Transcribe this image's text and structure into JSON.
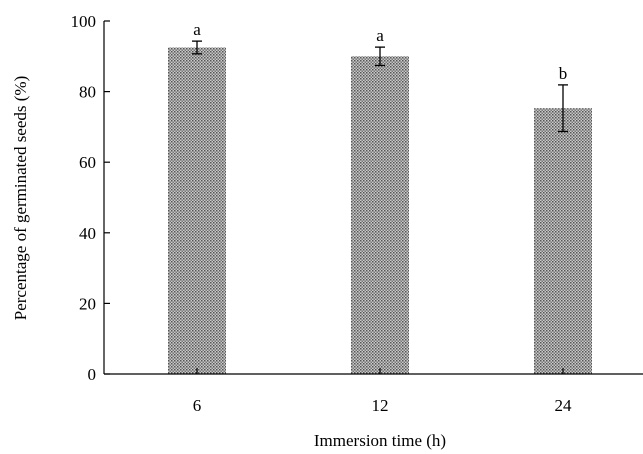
{
  "chart_data": {
    "type": "bar",
    "title": "",
    "xlabel": "Immersion time (h)",
    "ylabel": "Percentage of germinated seeds (%)",
    "ylim": [
      0,
      100
    ],
    "yticks": [
      0,
      20,
      40,
      60,
      80,
      100
    ],
    "categories": [
      "6",
      "12",
      "24"
    ],
    "values": [
      92.5,
      90,
      75.3
    ],
    "errors": [
      1.8,
      2.6,
      6.6
    ],
    "significance": [
      "a",
      "a",
      "b"
    ],
    "bar_fill": "#9a9a9a",
    "grid": false,
    "legend": "none"
  }
}
